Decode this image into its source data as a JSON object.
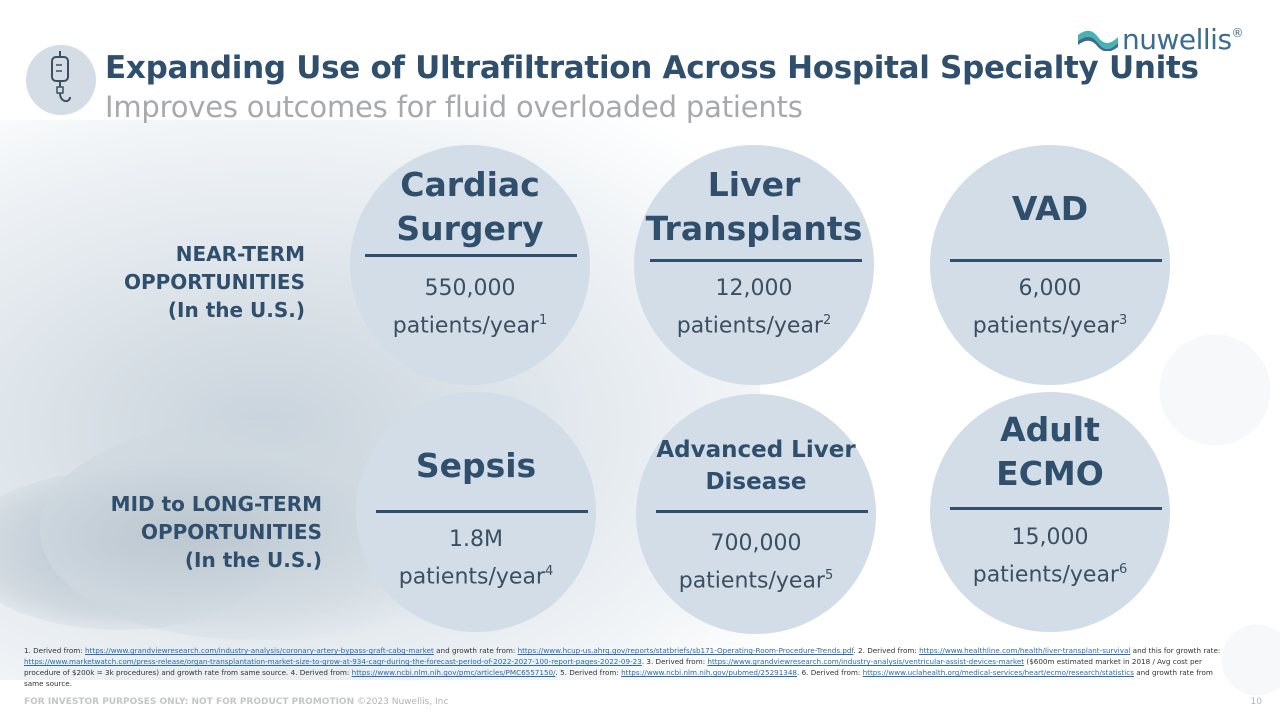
{
  "title": "Expanding Use of Ultrafiltration Across Hospital Specialty Units",
  "subtitle": "Improves outcomes for fluid overloaded patients",
  "logo": {
    "text": "nuwellis",
    "mark": "®"
  },
  "rows": {
    "near_term_lines": [
      "NEAR-TERM",
      "OPPORTUNITIES",
      "(In the U.S.)"
    ],
    "mid_long_lines": [
      "MID to LONG-TERM",
      "OPPORTUNITIES",
      "(In the U.S.)"
    ]
  },
  "circles": [
    {
      "name_lines": [
        "Cardiac",
        "Surgery"
      ],
      "count": "550,000",
      "unit": "patients/year",
      "ref": "1"
    },
    {
      "name_lines": [
        "Liver",
        "Transplants"
      ],
      "count": "12,000",
      "unit": "patients/year",
      "ref": "2"
    },
    {
      "name_lines": [
        "VAD"
      ],
      "count": "6,000",
      "unit": "patients/year",
      "ref": "3"
    },
    {
      "name_lines": [
        "Sepsis"
      ],
      "count": "1.8M",
      "unit": "patients/year",
      "ref": "4"
    },
    {
      "name_lines": [
        "Advanced Liver",
        "Disease"
      ],
      "count": "700,000",
      "unit": "patients/year",
      "ref": "5"
    },
    {
      "name_lines": [
        "Adult",
        "ECMO"
      ],
      "count": "15,000",
      "unit": "patients/year",
      "ref": "6"
    }
  ],
  "footnotes": {
    "f1_prefix": "1. Derived from: ",
    "f1_link1": "https://www.grandviewresearch.com/industry-analysis/coronary-artery-bypass-graft-cabg-market",
    "f1_mid": " and growth rate from: ",
    "f1_link2": "https://www.hcup-us.ahrq.gov/reports/statbriefs/sb171-Operating-Room-Procedure-Trends.pdf",
    "f2_prefix": ". 2. Derived from: ",
    "f2_link1": "https://www.healthline.com/health/liver-transplant-survival",
    "f2_mid": " and this for growth rate: ",
    "f2_link2": "https://www.marketwatch.com/press-release/organ-transplantation-market-size-to-grow-at-934-cagr-during-the-forecast-period-of-2022-2027-100-report-pages-2022-09-23",
    "f3_prefix": ". 3. Derived from: ",
    "f3_link1": "https://www.grandviewresearch.com/industry-analysis/ventricular-assist-devices-market",
    "f3_mid": " ($600m estimated market in 2018 / Avg cost per procedure of $200k = 3k procedures) and growth rate from same source. 4. Derived from: ",
    "f4_link": "https://www.ncbi.nlm.nih.gov/pmc/articles/PMC6557150/",
    "f5_prefix": ". 5. Derived from: ",
    "f5_link": "https://www.ncbi.nlm.nih.gov/pubmed/25291348",
    "f6_prefix": ". 6. Derived from: ",
    "f6_link": "https://www.uclahealth.org/medical-services/heart/ecmo/research/statistics",
    "f6_suffix": " and growth rate from same source."
  },
  "footer": {
    "disclaimer": "FOR INVESTOR PURPOSES ONLY: NOT FOR PRODUCT PROMOTION",
    "copyright": " ©2023 Nuwellis, Inc",
    "page_number": "10"
  }
}
